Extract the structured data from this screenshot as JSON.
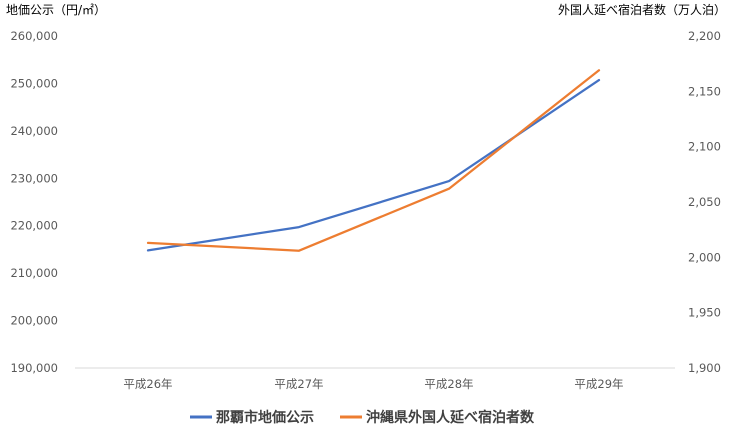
{
  "chart_data": {
    "type": "line",
    "categories": [
      "平成26年",
      "平成27年",
      "平成28年",
      "平成29年"
    ],
    "y_left": {
      "label": "地価公示（円/㎡）",
      "ylim": [
        190000,
        260000
      ],
      "ticks": [
        "190,000",
        "200,000",
        "210,000",
        "220,000",
        "230,000",
        "240,000",
        "250,000",
        "260,000"
      ]
    },
    "y_right": {
      "label": "外国人延べ宿泊者数（万人泊）",
      "ylim": [
        1900,
        2200
      ],
      "ticks": [
        "1,900",
        "1,950",
        "2,000",
        "2,050",
        "2,100",
        "2,150",
        "2,200"
      ]
    },
    "series": [
      {
        "name": "那覇市地価公示",
        "axis": "left",
        "color": "#4472C4",
        "values": [
          214800,
          219700,
          229400,
          250700
        ]
      },
      {
        "name": "沖縄県外国人延べ宿泊者数",
        "axis": "right",
        "color": "#ED7D31",
        "values": [
          2013,
          2006,
          2062,
          2169
        ]
      }
    ],
    "grid": false,
    "legend": "bottom"
  }
}
